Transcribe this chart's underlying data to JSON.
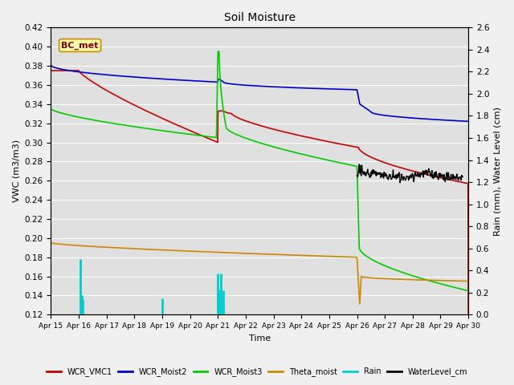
{
  "title": "Soil Moisture",
  "xlabel": "Time",
  "ylabel_left": "VWC (m3/m3)",
  "ylabel_right": "Rain (mm), Water Level (cm)",
  "annotation": "BC_met",
  "ylim_left": [
    0.12,
    0.42
  ],
  "ylim_right": [
    0.0,
    2.6
  ],
  "yticks_left": [
    0.12,
    0.14,
    0.16,
    0.18,
    0.2,
    0.22,
    0.24,
    0.26,
    0.28,
    0.3,
    0.32,
    0.34,
    0.36,
    0.38,
    0.4,
    0.42
  ],
  "yticks_right": [
    0.0,
    0.2,
    0.4,
    0.6,
    0.8,
    1.0,
    1.2,
    1.4,
    1.6,
    1.8,
    2.0,
    2.2,
    2.4,
    2.6
  ],
  "xtick_labels": [
    "Apr 15",
    "Apr 16",
    "Apr 17",
    "Apr 18",
    "Apr 19",
    "Apr 20",
    "Apr 21",
    "Apr 22",
    "Apr 23",
    "Apr 24",
    "Apr 25",
    "Apr 26",
    "Apr 27",
    "Apr 28",
    "Apr 29",
    "Apr 30"
  ],
  "colors": {
    "WCR_VMC1": "#cc0000",
    "WCR_Moist2": "#0000cc",
    "WCR_Moist3": "#00cc00",
    "Theta_moist": "#cc8800",
    "Rain": "#00cccc",
    "WaterLevel_cm": "#000000"
  },
  "background_color": "#e0e0e0",
  "fig_facecolor": "#f0f0f0",
  "grid_color": "#ffffff"
}
